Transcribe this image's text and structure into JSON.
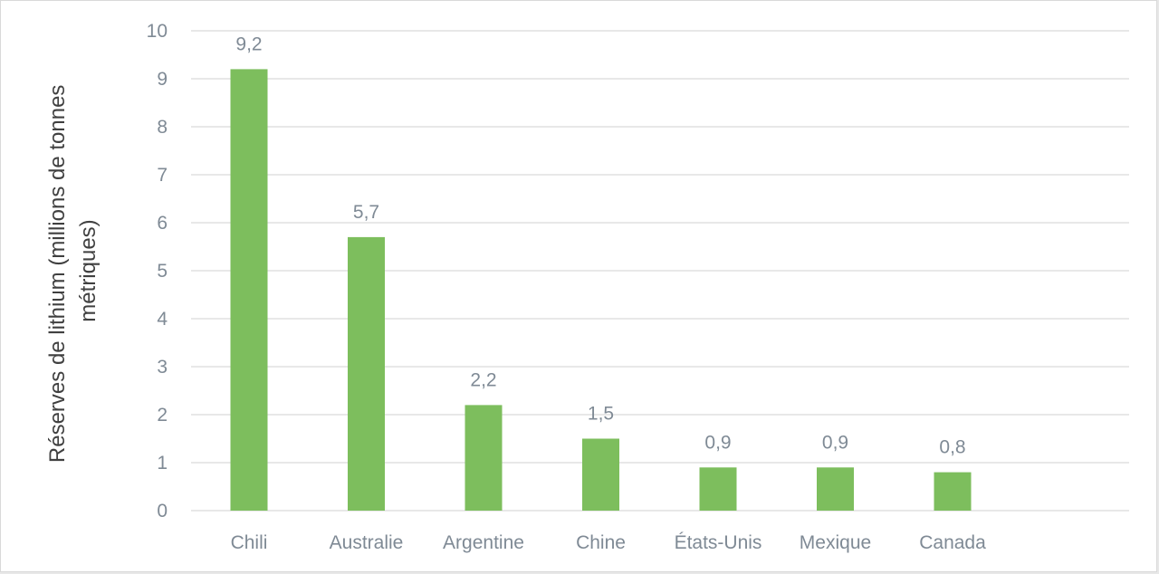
{
  "chart_data": {
    "type": "bar",
    "title": "",
    "xlabel": "",
    "ylabel_lines": [
      "Réserves de lithium (millions de tonnes",
      "métriques)"
    ],
    "categories": [
      "Chili",
      "Australie",
      "Argentine",
      "Chine",
      "États-Unis",
      "Mexique",
      "Canada"
    ],
    "values": [
      9.2,
      5.7,
      2.2,
      1.5,
      0.9,
      0.9,
      0.8
    ],
    "data_labels": [
      "9,2",
      "5,7",
      "2,2",
      "1,5",
      "0,9",
      "0,9",
      "0,8"
    ],
    "ylim": [
      0,
      10
    ],
    "yticks": [
      0,
      1,
      2,
      3,
      4,
      5,
      6,
      7,
      8,
      9,
      10
    ],
    "grid": true,
    "legend": "none",
    "colors": {
      "bar": "#7dbe5d",
      "grid": "#d9d9d9",
      "tick_text": "#7f8a95",
      "axis_title": "#404040"
    }
  }
}
